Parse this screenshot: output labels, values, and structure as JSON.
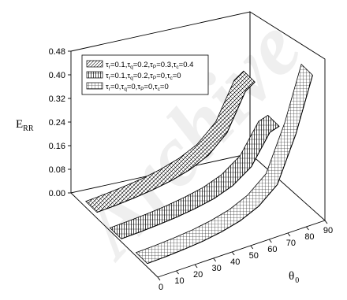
{
  "chart_data": {
    "type": "surface3d",
    "y_axis": {
      "main": "E",
      "sub": "RR",
      "ticks": [
        "0.00",
        "0.08",
        "0.16",
        "0.24",
        "0.32",
        "0.40",
        "0.48"
      ],
      "range": [
        0,
        0.48
      ]
    },
    "x_axis": {
      "main": "θ",
      "sub": "0",
      "ticks": [
        "0",
        "10",
        "20",
        "30",
        "40",
        "50",
        "60",
        "70",
        "80",
        "90"
      ],
      "range": [
        0,
        90
      ]
    },
    "legend": {
      "placement": "top-left",
      "entries": [
        {
          "pattern": "diagonal",
          "parts": [
            [
              "τ",
              "r",
              "=0.1,"
            ],
            [
              "τ",
              "q",
              "=0.2,"
            ],
            [
              "τ",
              "P",
              "=0.3,"
            ],
            [
              "τ",
              "c",
              "=0.4"
            ]
          ]
        },
        {
          "pattern": "vertical",
          "parts": [
            [
              "τ",
              "r",
              "=0.1,"
            ],
            [
              "τ",
              "q",
              "=0.2,"
            ],
            [
              "τ",
              "P",
              "=0,"
            ],
            [
              "τ",
              "c",
              "=0"
            ]
          ]
        },
        {
          "pattern": "grid",
          "parts": [
            [
              "τ",
              "r",
              "=0,"
            ],
            [
              "τ",
              "q",
              "=0,"
            ],
            [
              "τ",
              "P",
              "=0,"
            ],
            [
              "τ",
              "c",
              "=0"
            ]
          ]
        }
      ]
    },
    "series": [
      {
        "pattern": "diagonal",
        "x": [
          0,
          10,
          20,
          30,
          40,
          50,
          60,
          70,
          80,
          85
        ],
        "y": [
          0.02,
          0.022,
          0.026,
          0.032,
          0.042,
          0.058,
          0.085,
          0.14,
          0.26,
          0.28
        ]
      },
      {
        "pattern": "vertical",
        "x": [
          0,
          10,
          20,
          30,
          40,
          50,
          60,
          70,
          80,
          85
        ],
        "y": [
          0.01,
          0.012,
          0.015,
          0.02,
          0.028,
          0.04,
          0.062,
          0.105,
          0.2,
          0.21
        ]
      },
      {
        "pattern": "grid",
        "x": [
          0,
          10,
          20,
          30,
          40,
          50,
          60,
          70,
          80,
          89
        ],
        "y": [
          0.012,
          0.014,
          0.018,
          0.024,
          0.034,
          0.05,
          0.078,
          0.13,
          0.28,
          0.46
        ]
      }
    ],
    "watermark": "Archive"
  }
}
